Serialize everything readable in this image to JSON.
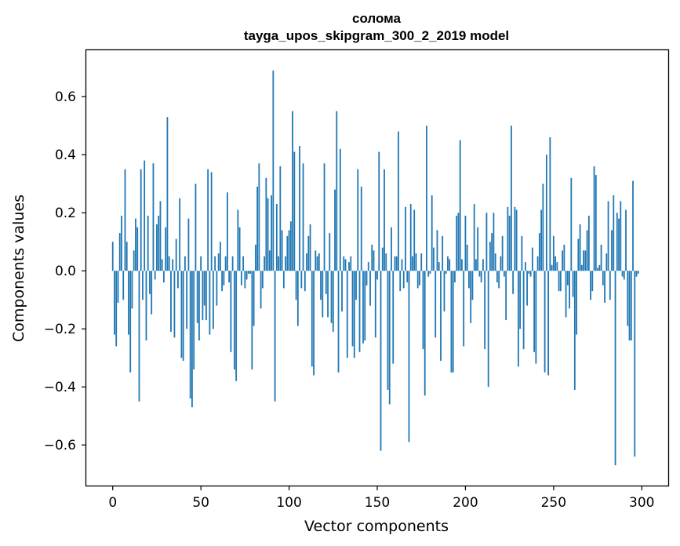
{
  "chart_data": {
    "type": "bar",
    "title": "солома",
    "subtitle": "tayga_upos_skipgram_300_2_2019 model",
    "xlabel": "Vector components",
    "ylabel": "Components values",
    "xlim": [
      -15,
      315
    ],
    "ylim": [
      -0.74,
      0.76
    ],
    "xticks": [
      0,
      50,
      100,
      150,
      200,
      250,
      300
    ],
    "xtick_labels": [
      "0",
      "50",
      "100",
      "150",
      "200",
      "250",
      "300"
    ],
    "yticks": [
      -0.6,
      -0.4,
      -0.2,
      0.0,
      0.2,
      0.4,
      0.6
    ],
    "ytick_labels": [
      "−0.6",
      "−0.4",
      "−0.2",
      "0.0",
      "0.2",
      "0.4",
      "0.6"
    ],
    "bar_color": "#1f77b4",
    "grid": false,
    "x": "0..299 (one bar per vector component)",
    "values": [
      0.1,
      -0.22,
      -0.26,
      -0.11,
      0.13,
      0.19,
      -0.1,
      0.35,
      0.1,
      -0.22,
      -0.35,
      -0.13,
      0.07,
      0.18,
      0.15,
      -0.45,
      0.35,
      -0.1,
      0.38,
      -0.24,
      0.19,
      -0.08,
      -0.15,
      0.37,
      -0.03,
      0.16,
      0.19,
      0.24,
      0.04,
      -0.04,
      0.15,
      0.53,
      0.05,
      -0.21,
      0.04,
      -0.23,
      0.11,
      -0.06,
      0.25,
      -0.3,
      -0.31,
      0.05,
      -0.2,
      0.18,
      -0.44,
      -0.47,
      -0.34,
      0.3,
      -0.18,
      -0.24,
      0.05,
      -0.17,
      -0.12,
      -0.17,
      0.35,
      -0.22,
      0.34,
      -0.2,
      0.05,
      -0.12,
      0.06,
      0.1,
      -0.07,
      -0.05,
      0.05,
      0.27,
      -0.04,
      -0.28,
      0.05,
      -0.34,
      -0.38,
      0.21,
      0.15,
      -0.05,
      0.05,
      -0.06,
      -0.03,
      -0.01,
      -0.01,
      -0.34,
      -0.19,
      0.09,
      0.29,
      0.37,
      -0.13,
      -0.06,
      0.05,
      0.32,
      0.25,
      0.07,
      0.26,
      0.69,
      -0.45,
      0.23,
      0.05,
      0.36,
      0.14,
      -0.06,
      0.05,
      0.12,
      0.14,
      0.17,
      0.55,
      0.41,
      -0.1,
      -0.19,
      0.43,
      -0.06,
      0.37,
      -0.07,
      0.06,
      0.12,
      0.16,
      -0.33,
      -0.36,
      0.07,
      0.05,
      0.06,
      -0.1,
      -0.16,
      0.37,
      -0.08,
      -0.16,
      0.13,
      -0.18,
      -0.21,
      0.28,
      0.55,
      -0.35,
      0.42,
      -0.14,
      0.05,
      0.04,
      -0.3,
      0.03,
      0.05,
      -0.26,
      -0.3,
      -0.1,
      0.35,
      -0.28,
      0.29,
      -0.25,
      -0.24,
      -0.05,
      0.03,
      -0.12,
      0.09,
      0.07,
      -0.23,
      -0.03,
      0.41,
      -0.62,
      0.08,
      0.35,
      0.06,
      -0.41,
      -0.46,
      0.15,
      -0.32,
      0.05,
      0.05,
      0.48,
      -0.07,
      0.04,
      -0.06,
      0.22,
      -0.04,
      -0.59,
      0.23,
      0.05,
      0.21,
      0.06,
      -0.06,
      -0.05,
      0.06,
      -0.27,
      -0.43,
      0.5,
      -0.02,
      -0.01,
      0.26,
      0.08,
      -0.23,
      0.14,
      0.03,
      -0.31,
      0.12,
      -0.14,
      -0.01,
      0.05,
      0.04,
      -0.35,
      -0.35,
      -0.04,
      0.19,
      0.2,
      0.45,
      0.04,
      -0.26,
      0.19,
      0.09,
      -0.06,
      -0.18,
      -0.1,
      0.23,
      0.04,
      0.15,
      -0.02,
      -0.04,
      0.04,
      -0.27,
      0.2,
      -0.4,
      0.1,
      0.13,
      0.2,
      0.06,
      -0.04,
      -0.06,
      0.05,
      0.12,
      -0.02,
      -0.17,
      0.22,
      0.19,
      0.5,
      -0.08,
      0.22,
      0.21,
      -0.33,
      -0.2,
      0.12,
      -0.27,
      0.03,
      -0.12,
      -0.01,
      -0.02,
      0.08,
      -0.28,
      -0.32,
      0.05,
      0.13,
      0.21,
      0.3,
      -0.35,
      0.4,
      -0.36,
      0.46,
      0.02,
      0.12,
      0.05,
      0.03,
      -0.07,
      -0.07,
      0.07,
      0.09,
      -0.16,
      -0.05,
      -0.13,
      0.32,
      -0.09,
      -0.41,
      -0.22,
      0.11,
      0.16,
      0.02,
      0.07,
      0.07,
      0.14,
      0.19,
      -0.1,
      -0.07,
      0.36,
      0.33,
      0.01,
      0.02,
      0.09,
      -0.05,
      -0.11,
      0.06,
      0.24,
      -0.1,
      0.14,
      0.26,
      -0.67,
      0.2,
      0.18,
      0.24,
      -0.02,
      -0.03,
      0.21,
      -0.19,
      -0.24,
      -0.24,
      0.31,
      -0.64,
      -0.02,
      -0.01,
      0.0
    ]
  }
}
